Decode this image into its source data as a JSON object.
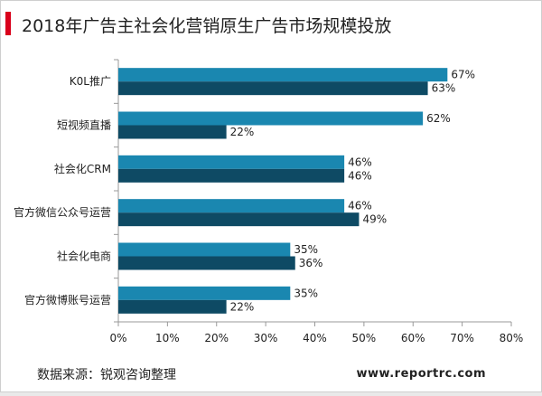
{
  "title": "2018年广告主社会化营销原生广告市场规模投放",
  "colors": {
    "accent": "#d9001b",
    "series_a": "#1a87b0",
    "series_b": "#0e4a64",
    "axis": "#999999",
    "text": "#222222"
  },
  "chart_data": {
    "type": "bar",
    "orientation": "horizontal",
    "categories": [
      "K0L推广",
      "短视频直播",
      "社会化CRM",
      "官方微信公众号运营",
      "社会化电商",
      "官方微博账号运营"
    ],
    "series": [
      {
        "values": [
          67,
          62,
          46,
          46,
          35,
          35
        ]
      },
      {
        "values": [
          63,
          22,
          46,
          49,
          36,
          22
        ]
      }
    ],
    "value_suffix": "%",
    "xlim": [
      0,
      80
    ],
    "xticks": [
      0,
      10,
      20,
      30,
      40,
      50,
      60,
      70,
      80
    ],
    "xtick_labels": [
      "0%",
      "10%",
      "20%",
      "30%",
      "40%",
      "50%",
      "60%",
      "70%",
      "80%"
    ],
    "grid": false,
    "legend": "none"
  },
  "footer": {
    "source": "数据来源：锐观咨询整理",
    "site": "www.reportrc.com"
  }
}
